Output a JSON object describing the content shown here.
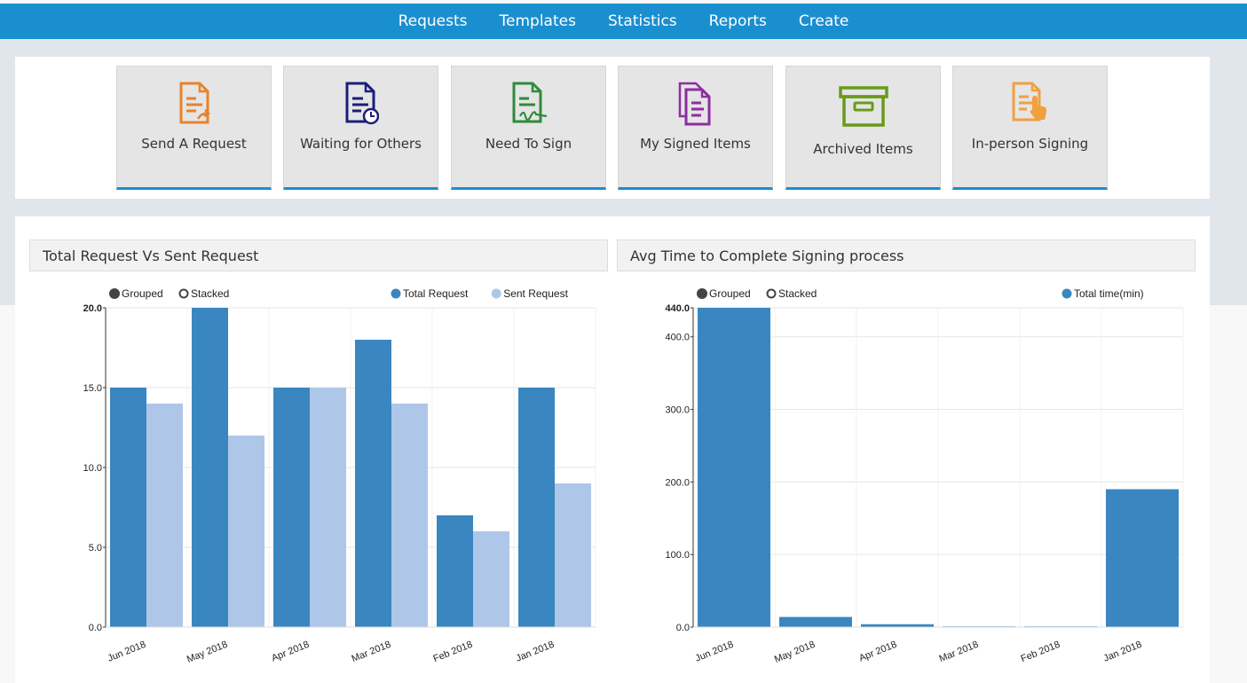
{
  "nav": {
    "items": [
      "Requests",
      "Templates",
      "Statistics",
      "Reports",
      "Create"
    ]
  },
  "tiles": [
    {
      "label": "Send A Request",
      "icon": "send-request-icon",
      "color": "#e8822a"
    },
    {
      "label": "Waiting for Others",
      "icon": "waiting-clock-icon",
      "color": "#1a1f7a"
    },
    {
      "label": "Need To Sign",
      "icon": "sign-document-icon",
      "color": "#2e8b3a"
    },
    {
      "label": "My Signed Items",
      "icon": "signed-items-icon",
      "color": "#8e2ea0"
    },
    {
      "label": "Archived Items",
      "icon": "archive-box-icon",
      "color": "#6a9a1a"
    },
    {
      "label": "In-person Signing",
      "icon": "in-person-signing-icon",
      "color": "#f0a040"
    }
  ],
  "charts": {
    "left": {
      "title": "Total Request Vs Sent Request",
      "controls": {
        "grouped": "Grouped",
        "stacked": "Stacked"
      }
    },
    "right": {
      "title": "Avg Time to Complete Signing process",
      "controls": {
        "grouped": "Grouped",
        "stacked": "Stacked"
      }
    }
  },
  "colors": {
    "nav": "#1a8fd0",
    "series_dark": "#3a86c0",
    "series_light": "#aec7e8"
  },
  "chart_data": [
    {
      "type": "bar",
      "title": "Total Request Vs Sent Request",
      "categories": [
        "Jun 2018",
        "May 2018",
        "Apr 2018",
        "Mar 2018",
        "Feb 2018",
        "Jan 2018"
      ],
      "series": [
        {
          "name": "Total Request",
          "values": [
            15,
            20,
            15,
            18,
            7,
            15
          ]
        },
        {
          "name": "Sent Request",
          "values": [
            14,
            12,
            15,
            14,
            6,
            9
          ]
        }
      ],
      "yticks": [
        "0.0",
        "5.0",
        "10.0",
        "15.0",
        "20.0"
      ],
      "ylim": [
        0,
        20
      ],
      "legend": "top-right",
      "grid": true
    },
    {
      "type": "bar",
      "title": "Avg Time to Complete Signing process",
      "categories": [
        "Jun 2018",
        "May 2018",
        "Apr 2018",
        "Mar 2018",
        "Feb 2018",
        "Jan 2018"
      ],
      "series": [
        {
          "name": "Total time(min)",
          "values": [
            440,
            14,
            4,
            1,
            1,
            190
          ]
        }
      ],
      "yticks": [
        "0.0",
        "100.0",
        "200.0",
        "300.0",
        "400.0",
        "440.0"
      ],
      "ylim": [
        0,
        440
      ],
      "legend": "top-right",
      "grid": true
    }
  ]
}
